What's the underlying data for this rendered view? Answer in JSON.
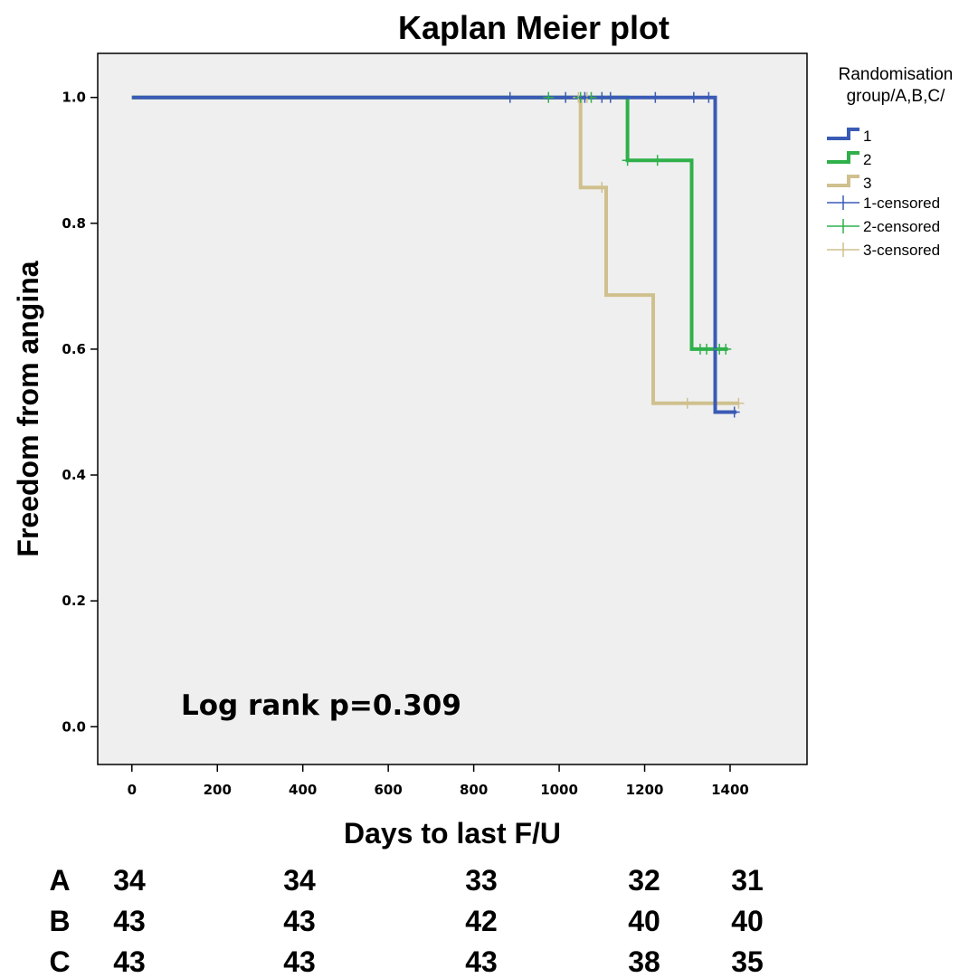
{
  "chart_data": {
    "type": "line",
    "title": "Kaplan Meier plot",
    "xlabel": "Days to last F/U",
    "ylabel": "Freedom from angina",
    "xlim": [
      -80,
      1580
    ],
    "ylim": [
      -0.06,
      1.07
    ],
    "xticks": [
      0,
      200,
      400,
      600,
      800,
      1000,
      1200,
      1400
    ],
    "yticks": [
      0.0,
      0.2,
      0.4,
      0.6,
      0.8,
      1.0
    ],
    "ytick_labels": [
      "0.0",
      "0.2",
      "0.4",
      "0.6",
      "0.8",
      "1.0"
    ],
    "grid": false,
    "background": "#efefef",
    "legend": {
      "title_lines": [
        "Randomisation",
        "group/A,B,C/"
      ],
      "position": "right"
    },
    "series": [
      {
        "name": "1",
        "censored_name": "1-censored",
        "color": "#3a5bb5",
        "steps": [
          [
            0,
            1.0
          ],
          [
            1365,
            1.0
          ],
          [
            1365,
            0.5
          ],
          [
            1415,
            0.5
          ]
        ],
        "censored": [
          [
            885,
            1.0
          ],
          [
            1015,
            1.0
          ],
          [
            1060,
            1.0
          ],
          [
            1100,
            1.0
          ],
          [
            1120,
            1.0
          ],
          [
            1225,
            1.0
          ],
          [
            1315,
            1.0
          ],
          [
            1350,
            1.0
          ],
          [
            1410,
            0.5
          ]
        ]
      },
      {
        "name": "2",
        "censored_name": "2-censored",
        "color": "#2fb04a",
        "steps": [
          [
            0,
            1.0
          ],
          [
            1160,
            1.0
          ],
          [
            1160,
            0.9
          ],
          [
            1310,
            0.9
          ],
          [
            1310,
            0.6
          ],
          [
            1395,
            0.6
          ]
        ],
        "censored": [
          [
            975,
            1.0
          ],
          [
            1050,
            1.0
          ],
          [
            1075,
            1.0
          ],
          [
            1160,
            0.9
          ],
          [
            1230,
            0.9
          ],
          [
            1330,
            0.6
          ],
          [
            1345,
            0.6
          ],
          [
            1375,
            0.6
          ],
          [
            1390,
            0.6
          ]
        ]
      },
      {
        "name": "3",
        "censored_name": "3-censored",
        "color": "#cfc08e",
        "steps": [
          [
            0,
            1.0
          ],
          [
            1050,
            1.0
          ],
          [
            1050,
            0.857
          ],
          [
            1110,
            0.857
          ],
          [
            1110,
            0.686
          ],
          [
            1220,
            0.686
          ],
          [
            1220,
            0.514
          ],
          [
            1420,
            0.514
          ]
        ],
        "censored": [
          [
            1045,
            1.0
          ],
          [
            1065,
            1.0
          ],
          [
            1100,
            0.857
          ],
          [
            1300,
            0.514
          ],
          [
            1420,
            0.514
          ]
        ]
      }
    ],
    "annotation": "Log rank p=0.309",
    "risk_table": {
      "rows": [
        {
          "label": "A",
          "values": [
            "34",
            "34",
            "33",
            "32",
            "31"
          ]
        },
        {
          "label": "B",
          "values": [
            "43",
            "43",
            "42",
            "40",
            "40"
          ]
        },
        {
          "label": "C",
          "values": [
            "43",
            "43",
            "43",
            "38",
            "35"
          ]
        }
      ]
    }
  }
}
